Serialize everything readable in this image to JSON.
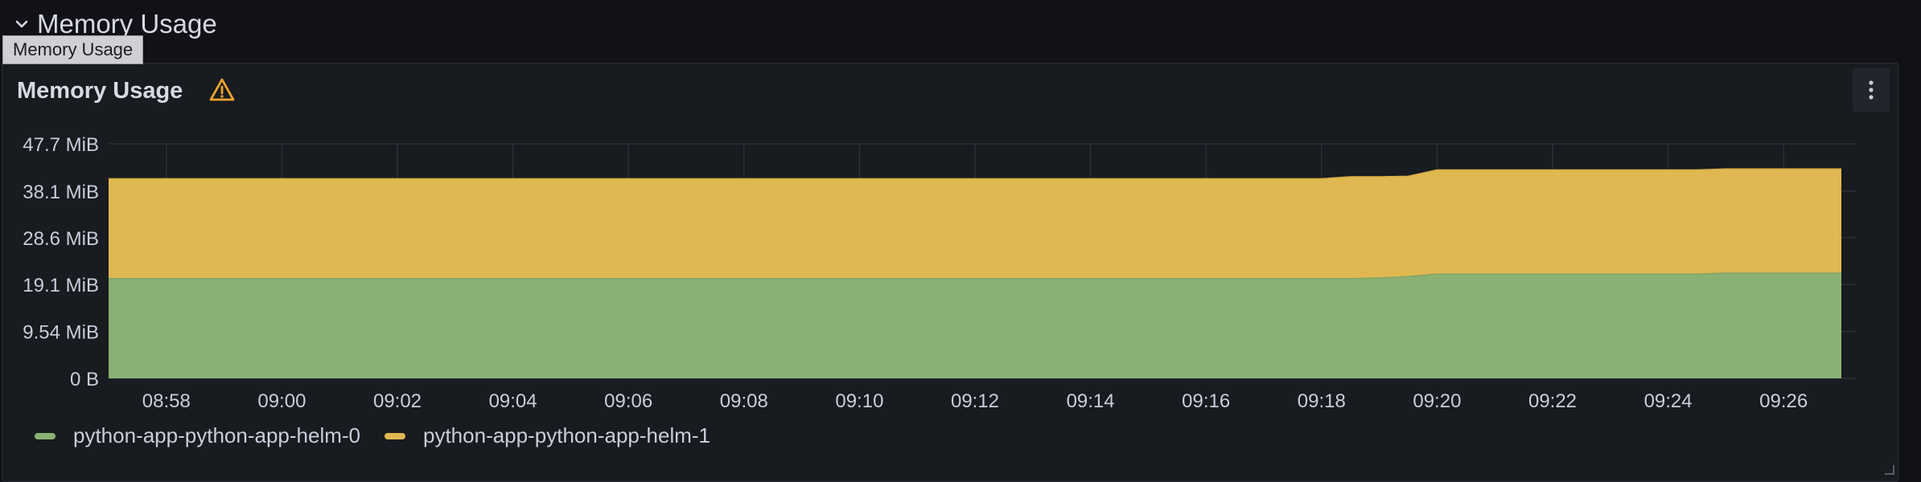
{
  "row": {
    "title": "Memory Usage",
    "chevron_icon": "chevron-down-icon"
  },
  "tooltip": {
    "text": "Memory Usage"
  },
  "panel": {
    "title": "Memory Usage",
    "warning_icon": "warning-triangle-icon",
    "menu_icon": "kebab-menu-icon"
  },
  "colors": {
    "background": "#111217",
    "panel_bg": "#181b1f",
    "series0": "#8ab173",
    "series1": "#e0b851",
    "warning": "#f2a531",
    "grid": "#2c2f36",
    "text": "#ccccdc"
  },
  "chart_data": {
    "type": "area",
    "stacked": true,
    "y_ticks": [
      "0 B",
      "9.54 MiB",
      "19.1 MiB",
      "28.6 MiB",
      "38.1 MiB",
      "47.7 MiB"
    ],
    "y_tick_values": [
      0,
      9.54,
      19.1,
      28.6,
      38.1,
      47.7
    ],
    "ylim": [
      0,
      47.7
    ],
    "y_unit": "MiB",
    "x_ticks": [
      "08:58",
      "09:00",
      "09:02",
      "09:04",
      "09:06",
      "09:08",
      "09:10",
      "09:12",
      "09:14",
      "09:16",
      "09:18",
      "09:20",
      "09:22",
      "09:24",
      "09:26"
    ],
    "xlim": [
      "08:57:00",
      "09:27:00"
    ],
    "grid": true,
    "legend_position": "bottom",
    "series": [
      {
        "name": "python-app-python-app-helm-0",
        "color": "#8ab173",
        "points": [
          [
            "08:57:00",
            20.3
          ],
          [
            "09:18:00",
            20.3
          ],
          [
            "09:18:30",
            20.3
          ],
          [
            "09:19:00",
            20.4
          ],
          [
            "09:19:30",
            20.7
          ],
          [
            "09:20:00",
            21.2
          ],
          [
            "09:24:30",
            21.2
          ],
          [
            "09:25:00",
            21.4
          ],
          [
            "09:27:00",
            21.4
          ]
        ]
      },
      {
        "name": "python-app-python-app-helm-1",
        "color": "#e0b851",
        "points": [
          [
            "08:57:00",
            20.3
          ],
          [
            "09:18:00",
            20.3
          ],
          [
            "09:18:30",
            20.7
          ],
          [
            "09:19:00",
            20.6
          ],
          [
            "09:19:30",
            20.4
          ],
          [
            "09:20:00",
            21.2
          ],
          [
            "09:24:30",
            21.2
          ],
          [
            "09:25:00",
            21.2
          ],
          [
            "09:27:00",
            21.2
          ]
        ]
      }
    ]
  },
  "legend": [
    {
      "label": "python-app-python-app-helm-0",
      "color": "#8ab173"
    },
    {
      "label": "python-app-python-app-helm-1",
      "color": "#e0b851"
    }
  ]
}
